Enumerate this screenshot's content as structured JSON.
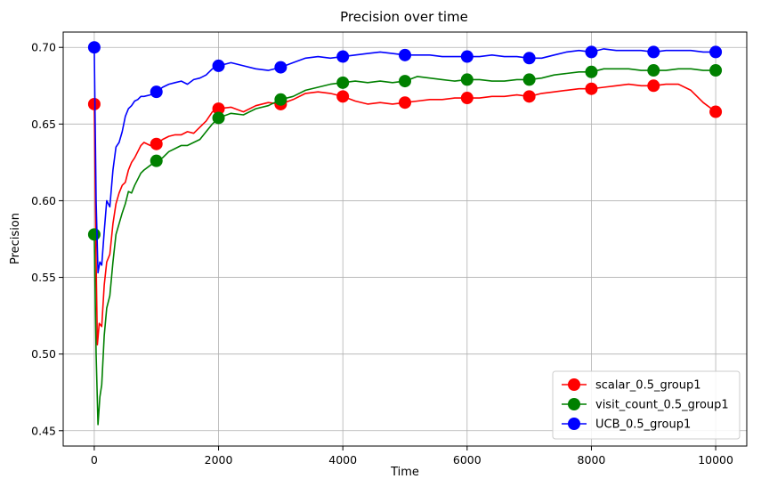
{
  "chart_data": {
    "type": "line",
    "title": "Precision over time",
    "xlabel": "Time",
    "ylabel": "Precision",
    "xlim": [
      -500,
      10500
    ],
    "ylim": [
      0.44,
      0.71
    ],
    "xticks": [
      0,
      2000,
      4000,
      6000,
      8000,
      10000
    ],
    "xtick_labels": [
      "0",
      "2000",
      "4000",
      "6000",
      "8000",
      "10000"
    ],
    "yticks": [
      0.45,
      0.5,
      0.55,
      0.6,
      0.65,
      0.7
    ],
    "ytick_labels": [
      "0.45",
      "0.50",
      "0.55",
      "0.60",
      "0.65",
      "0.70"
    ],
    "grid": true,
    "legend_position": "lower-right",
    "series": [
      {
        "name": "scalar_0.5_group1",
        "color": "#ff0000",
        "markers": {
          "x": [
            0,
            1000,
            2000,
            3000,
            4000,
            5000,
            6000,
            7000,
            8000,
            9000,
            10000
          ],
          "y": [
            0.663,
            0.637,
            0.66,
            0.663,
            0.668,
            0.664,
            0.667,
            0.668,
            0.673,
            0.675,
            0.658
          ]
        },
        "x": [
          0,
          30,
          50,
          80,
          120,
          160,
          200,
          250,
          300,
          350,
          400,
          450,
          500,
          550,
          600,
          650,
          700,
          750,
          800,
          900,
          1000,
          1100,
          1200,
          1300,
          1400,
          1500,
          1600,
          1700,
          1800,
          1900,
          2000,
          2200,
          2400,
          2600,
          2800,
          3000,
          3200,
          3400,
          3600,
          3800,
          4000,
          4200,
          4400,
          4600,
          4800,
          5000,
          5200,
          5400,
          5600,
          5800,
          6000,
          6200,
          6400,
          6600,
          6800,
          7000,
          7200,
          7400,
          7600,
          7800,
          8000,
          8200,
          8400,
          8600,
          8800,
          9000,
          9200,
          9400,
          9600,
          9800,
          10000
        ],
        "y": [
          0.663,
          0.56,
          0.506,
          0.52,
          0.518,
          0.545,
          0.56,
          0.565,
          0.585,
          0.598,
          0.605,
          0.61,
          0.612,
          0.62,
          0.625,
          0.628,
          0.632,
          0.636,
          0.638,
          0.636,
          0.637,
          0.64,
          0.642,
          0.643,
          0.643,
          0.645,
          0.644,
          0.648,
          0.652,
          0.658,
          0.66,
          0.661,
          0.658,
          0.662,
          0.664,
          0.663,
          0.666,
          0.67,
          0.671,
          0.67,
          0.668,
          0.665,
          0.663,
          0.664,
          0.663,
          0.664,
          0.665,
          0.666,
          0.666,
          0.667,
          0.667,
          0.667,
          0.668,
          0.668,
          0.669,
          0.668,
          0.67,
          0.671,
          0.672,
          0.673,
          0.673,
          0.674,
          0.675,
          0.676,
          0.675,
          0.675,
          0.676,
          0.676,
          0.672,
          0.664,
          0.658
        ]
      },
      {
        "name": "visit_count_0.5_group1",
        "color": "#008000",
        "markers": {
          "x": [
            0,
            1000,
            2000,
            3000,
            4000,
            5000,
            6000,
            7000,
            8000,
            9000,
            10000
          ],
          "y": [
            0.578,
            0.626,
            0.654,
            0.666,
            0.677,
            0.678,
            0.679,
            0.679,
            0.684,
            0.685,
            0.685
          ]
        },
        "x": [
          0,
          30,
          60,
          90,
          120,
          160,
          200,
          250,
          300,
          350,
          400,
          450,
          500,
          550,
          600,
          650,
          700,
          750,
          800,
          900,
          1000,
          1100,
          1200,
          1300,
          1400,
          1500,
          1600,
          1700,
          1800,
          1900,
          2000,
          2200,
          2400,
          2600,
          2800,
          3000,
          3200,
          3400,
          3600,
          3800,
          4000,
          4200,
          4400,
          4600,
          4800,
          5000,
          5200,
          5400,
          5600,
          5800,
          6000,
          6200,
          6400,
          6600,
          6800,
          7000,
          7200,
          7400,
          7600,
          7800,
          8000,
          8200,
          8400,
          8600,
          8800,
          9000,
          9200,
          9400,
          9600,
          9800,
          10000
        ],
        "y": [
          0.578,
          0.5,
          0.454,
          0.472,
          0.48,
          0.512,
          0.53,
          0.538,
          0.56,
          0.578,
          0.585,
          0.592,
          0.598,
          0.606,
          0.605,
          0.61,
          0.614,
          0.618,
          0.62,
          0.623,
          0.626,
          0.628,
          0.632,
          0.634,
          0.636,
          0.636,
          0.638,
          0.64,
          0.645,
          0.65,
          0.654,
          0.657,
          0.656,
          0.66,
          0.662,
          0.666,
          0.668,
          0.672,
          0.674,
          0.676,
          0.677,
          0.678,
          0.677,
          0.678,
          0.677,
          0.678,
          0.681,
          0.68,
          0.679,
          0.678,
          0.679,
          0.679,
          0.678,
          0.678,
          0.679,
          0.679,
          0.68,
          0.682,
          0.683,
          0.684,
          0.684,
          0.686,
          0.686,
          0.686,
          0.685,
          0.685,
          0.685,
          0.686,
          0.686,
          0.685,
          0.685
        ]
      },
      {
        "name": "UCB_0.5_group1",
        "color": "#0000ff",
        "markers": {
          "x": [
            0,
            1000,
            2000,
            3000,
            4000,
            5000,
            6000,
            7000,
            8000,
            9000,
            10000
          ],
          "y": [
            0.7,
            0.671,
            0.688,
            0.687,
            0.694,
            0.695,
            0.694,
            0.693,
            0.697,
            0.697,
            0.697
          ]
        },
        "x": [
          0,
          30,
          60,
          90,
          120,
          160,
          200,
          250,
          300,
          350,
          400,
          450,
          500,
          550,
          600,
          650,
          700,
          750,
          800,
          900,
          1000,
          1100,
          1200,
          1300,
          1400,
          1500,
          1600,
          1700,
          1800,
          1900,
          2000,
          2200,
          2400,
          2600,
          2800,
          3000,
          3200,
          3400,
          3600,
          3800,
          4000,
          4200,
          4400,
          4600,
          4800,
          5000,
          5200,
          5400,
          5600,
          5800,
          6000,
          6200,
          6400,
          6600,
          6800,
          7000,
          7200,
          7400,
          7600,
          7800,
          8000,
          8200,
          8400,
          8600,
          8800,
          9000,
          9200,
          9400,
          9600,
          9800,
          10000
        ],
        "y": [
          0.7,
          0.6,
          0.553,
          0.56,
          0.558,
          0.58,
          0.6,
          0.596,
          0.62,
          0.635,
          0.638,
          0.645,
          0.655,
          0.66,
          0.662,
          0.665,
          0.666,
          0.668,
          0.668,
          0.669,
          0.671,
          0.674,
          0.676,
          0.677,
          0.678,
          0.676,
          0.679,
          0.68,
          0.682,
          0.686,
          0.688,
          0.69,
          0.688,
          0.686,
          0.685,
          0.687,
          0.69,
          0.693,
          0.694,
          0.693,
          0.694,
          0.695,
          0.696,
          0.697,
          0.696,
          0.695,
          0.695,
          0.695,
          0.694,
          0.694,
          0.694,
          0.694,
          0.695,
          0.694,
          0.694,
          0.693,
          0.693,
          0.695,
          0.697,
          0.698,
          0.697,
          0.699,
          0.698,
          0.698,
          0.698,
          0.697,
          0.698,
          0.698,
          0.698,
          0.697,
          0.697
        ]
      }
    ]
  }
}
